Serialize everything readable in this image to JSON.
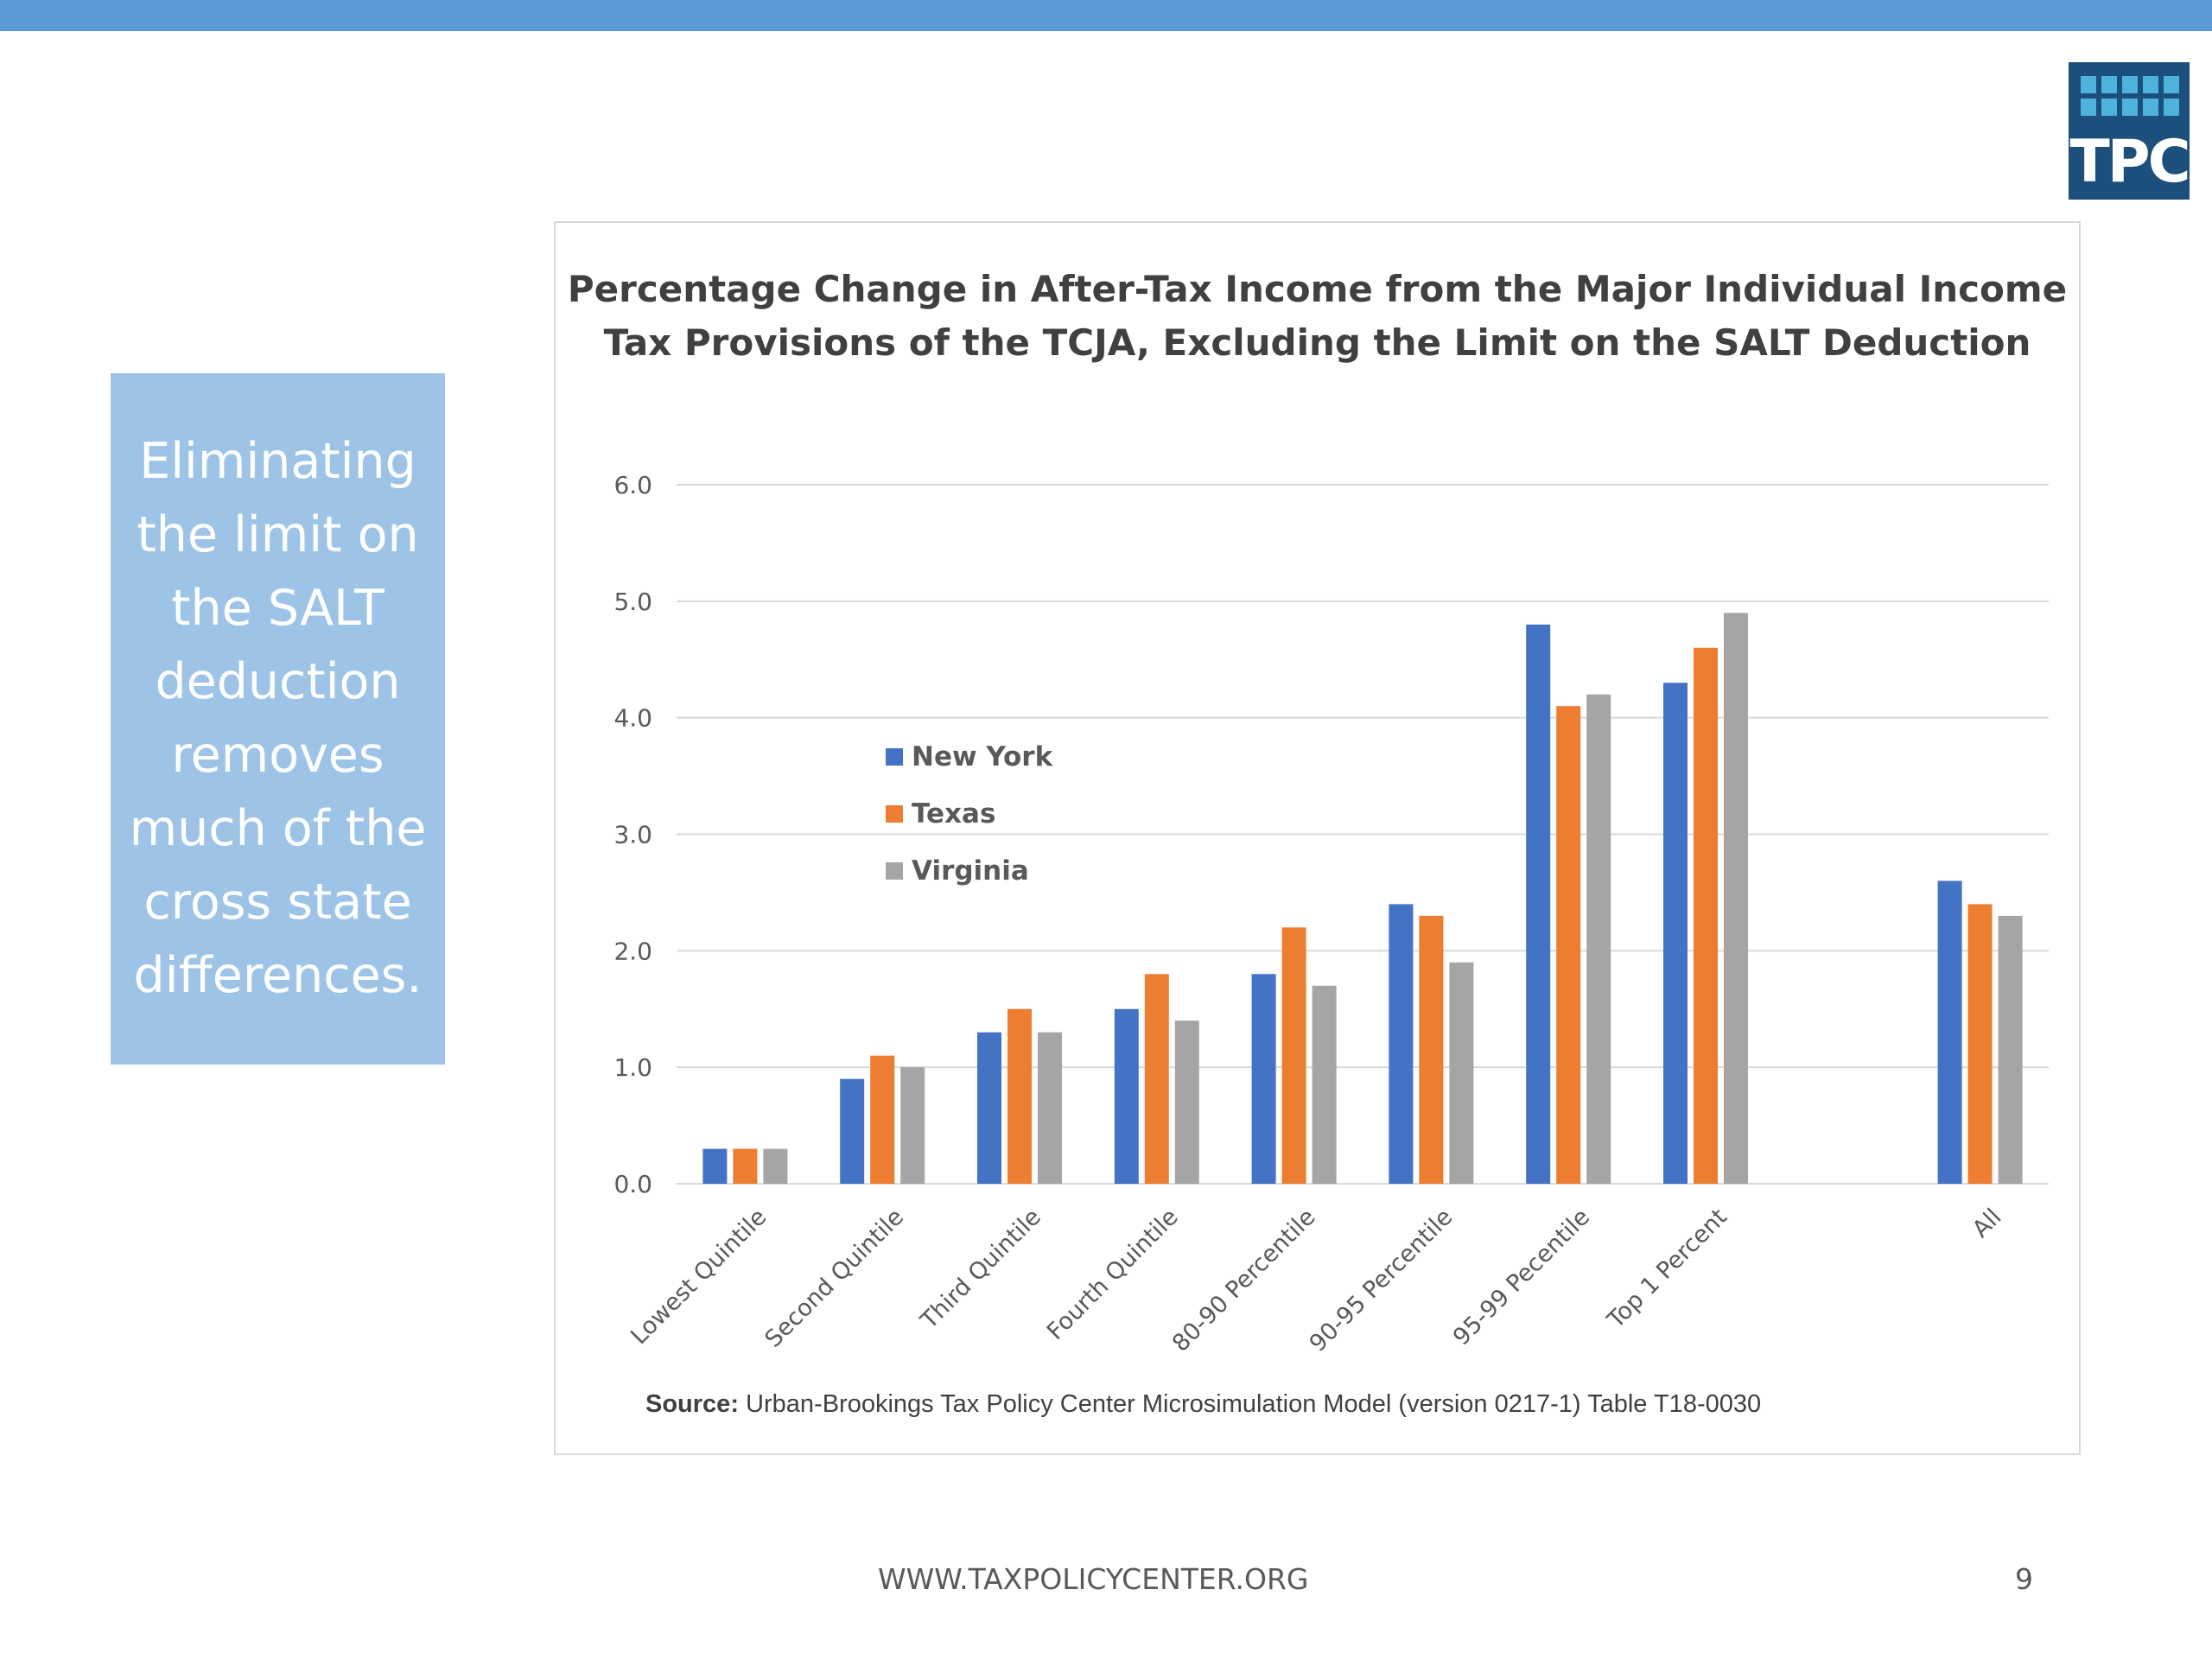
{
  "slide": {
    "side_text": "Eliminating the limit on the SALT deduction removes much of the cross state differences.",
    "logo_text": "TPC",
    "footer_url": "WWW.TAXPOLICYCENTER.ORG",
    "page_number": "9",
    "source_label": "Source:",
    "source_text": "Urban-Brookings Tax Policy Center Microsimulation Model (version 0217-1) Table T18-0030",
    "colors": {
      "top_bar": "#5b9bd5",
      "side_box": "#9dc3e6",
      "logo_bg": "#1d4f7c",
      "logo_cells": "#4db3dd"
    }
  },
  "chart_data": {
    "type": "bar",
    "title": "Percentage Change in After-Tax Income from the Major Individual Income Tax Provisions of the TCJA, Excluding the Limit on the SALT Deduction",
    "categories": [
      "Lowest Quintile",
      "Second Quintile",
      "Third Quintile",
      "Fourth Quintile",
      "80-90 Percentile",
      "90-95 Percentile",
      "95-99 Pecentile",
      "Top 1 Percent",
      "",
      "All"
    ],
    "series": [
      {
        "name": "New York",
        "color": "#4472c4",
        "values": [
          0.3,
          0.9,
          1.3,
          1.5,
          1.8,
          2.4,
          4.8,
          4.3,
          null,
          2.6
        ]
      },
      {
        "name": "Texas",
        "color": "#ed7d31",
        "values": [
          0.3,
          1.1,
          1.5,
          1.8,
          2.2,
          2.3,
          4.1,
          4.6,
          null,
          2.4
        ]
      },
      {
        "name": "Virginia",
        "color": "#a5a5a5",
        "values": [
          0.3,
          1.0,
          1.3,
          1.4,
          1.7,
          1.9,
          4.2,
          4.9,
          null,
          2.3
        ]
      }
    ],
    "yticks": [
      "0.0",
      "1.0",
      "2.0",
      "3.0",
      "4.0",
      "5.0",
      "6.0"
    ],
    "ylim": [
      0,
      6
    ],
    "xlabel": "",
    "ylabel": "",
    "grid": true,
    "legend_position": "inside-left"
  }
}
